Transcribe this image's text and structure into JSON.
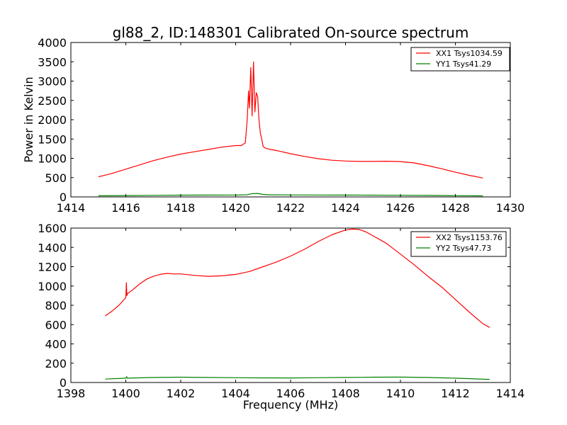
{
  "figure": {
    "title": "gl88_2, ID:148301 Calibrated On-source spectrum"
  },
  "chart_data": [
    {
      "type": "line",
      "title": "gl88_2, ID:148301 Calibrated On-source spectrum",
      "xlabel": "",
      "ylabel": "Power in Kelvin",
      "xlim": [
        1414,
        1430
      ],
      "ylim": [
        0,
        4000
      ],
      "xticks": [
        1414,
        1416,
        1418,
        1420,
        1422,
        1424,
        1426,
        1428,
        1430
      ],
      "yticks": [
        0,
        500,
        1000,
        1500,
        2000,
        2500,
        3000,
        3500,
        4000
      ],
      "grid": false,
      "legend_position": "top-right",
      "series": [
        {
          "name": "XX1 Tsys1034.59",
          "color": "#ff0000",
          "x": [
            1415.0,
            1415.5,
            1416.0,
            1416.5,
            1417.0,
            1417.5,
            1418.0,
            1418.5,
            1419.0,
            1419.5,
            1420.0,
            1420.2,
            1420.35,
            1420.42,
            1420.47,
            1420.5,
            1420.55,
            1420.6,
            1420.65,
            1420.7,
            1420.75,
            1420.8,
            1420.85,
            1420.9,
            1420.95,
            1421.0,
            1421.1,
            1421.2,
            1421.5,
            1422.0,
            1422.5,
            1423.0,
            1423.5,
            1424.0,
            1424.5,
            1425.0,
            1425.5,
            1426.0,
            1426.5,
            1427.0,
            1427.5,
            1428.0,
            1428.5,
            1429.0
          ],
          "values": [
            520,
            610,
            720,
            830,
            940,
            1030,
            1110,
            1170,
            1230,
            1290,
            1330,
            1330,
            1400,
            2000,
            2750,
            2300,
            3350,
            2100,
            3500,
            2200,
            2700,
            2600,
            2000,
            1650,
            1500,
            1300,
            1260,
            1240,
            1200,
            1120,
            1050,
            990,
            950,
            930,
            920,
            920,
            925,
            915,
            880,
            810,
            730,
            640,
            560,
            490
          ]
        },
        {
          "name": "YY1 Tsys41.29",
          "color": "#008000",
          "x": [
            1415.0,
            1416.0,
            1417.0,
            1418.0,
            1419.0,
            1420.0,
            1420.4,
            1420.6,
            1420.8,
            1421.0,
            1421.2,
            1422.0,
            1423.0,
            1424.0,
            1425.0,
            1426.0,
            1427.0,
            1428.0,
            1429.0
          ],
          "values": [
            30,
            35,
            40,
            45,
            48,
            50,
            55,
            85,
            90,
            65,
            55,
            52,
            50,
            48,
            45,
            42,
            38,
            33,
            28
          ]
        }
      ]
    },
    {
      "type": "line",
      "title": "",
      "xlabel": "Frequency (MHz)",
      "ylabel": "",
      "xlim": [
        1398,
        1414
      ],
      "ylim": [
        0,
        1600
      ],
      "xticks": [
        1398,
        1400,
        1402,
        1404,
        1406,
        1408,
        1410,
        1412,
        1414
      ],
      "yticks": [
        0,
        200,
        400,
        600,
        800,
        1000,
        1200,
        1400,
        1600
      ],
      "grid": false,
      "legend_position": "top-right",
      "series": [
        {
          "name": "XX2 Tsys1153.76",
          "color": "#ff0000",
          "x": [
            1399.25,
            1399.5,
            1399.75,
            1400.0,
            1400.02,
            1400.04,
            1400.06,
            1400.25,
            1400.5,
            1400.75,
            1401.0,
            1401.25,
            1401.5,
            1401.75,
            1402.0,
            1402.5,
            1403.0,
            1403.5,
            1404.0,
            1404.5,
            1405.0,
            1405.5,
            1406.0,
            1406.5,
            1407.0,
            1407.5,
            1408.0,
            1408.25,
            1408.5,
            1408.75,
            1409.0,
            1409.5,
            1410.0,
            1410.5,
            1411.0,
            1411.5,
            1412.0,
            1412.5,
            1413.0,
            1413.25
          ],
          "values": [
            690,
            740,
            800,
            880,
            1035,
            900,
            920,
            960,
            1020,
            1070,
            1100,
            1120,
            1130,
            1125,
            1125,
            1110,
            1100,
            1105,
            1120,
            1150,
            1200,
            1250,
            1310,
            1380,
            1460,
            1530,
            1580,
            1590,
            1585,
            1560,
            1520,
            1440,
            1330,
            1220,
            1100,
            990,
            860,
            730,
            610,
            570
          ]
        },
        {
          "name": "YY2 Tsys47.73",
          "color": "#008000",
          "x": [
            1399.25,
            1400.0,
            1400.03,
            1400.06,
            1401.0,
            1402.0,
            1403.0,
            1404.0,
            1405.0,
            1406.0,
            1407.0,
            1408.0,
            1409.0,
            1410.0,
            1411.0,
            1412.0,
            1413.25
          ],
          "values": [
            35,
            45,
            60,
            45,
            52,
            55,
            52,
            50,
            48,
            47,
            50,
            52,
            55,
            56,
            52,
            45,
            32
          ]
        }
      ]
    }
  ]
}
